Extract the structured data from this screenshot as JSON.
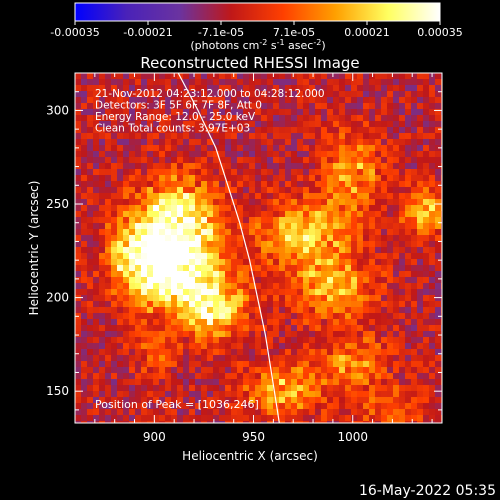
{
  "chart_data": {
    "type": "heatmap",
    "title": "Reconstructed RHESSI Image",
    "xlabel": "Heliocentric X (arcsec)",
    "ylabel": "Heliocentric Y (arcsec)",
    "xlim": [
      860,
      1045
    ],
    "ylim": [
      133,
      320
    ],
    "xticks": [
      900,
      950,
      1000
    ],
    "yticks": [
      150,
      200,
      250,
      300
    ],
    "colorbar": {
      "label_main": "(photons cm",
      "label_sup1": "-2",
      "label_mid": " s",
      "label_sup2": "-1",
      "label_end": " asec",
      "label_sup3": "-2",
      "label_close": ")",
      "range": [
        -0.00035,
        0.00035
      ],
      "ticks": [
        "-0.00035",
        "-0.00021",
        "-7.1e-05",
        "7.1e-05",
        "0.00021",
        "0.00035"
      ],
      "colors": [
        "#0000ff",
        "#4a22b8",
        "#6a33a0",
        "#c01818",
        "#ff4000",
        "#ffa000",
        "#ffff60",
        "#ffffff"
      ]
    },
    "info_lines": [
      "21-Nov-2012 04:23:12.000 to 04:28:12.000",
      "Detectors: 3F 5F 6F 7F 8F, Att 0",
      "Energy Range: 12.0 - 25.0 keV",
      "Clean    Total counts: 3.97E+03"
    ],
    "peak_text": "Position of Peak = [1036,246]",
    "peak": [
      1036,
      246
    ],
    "limb_curve": [
      [
        912,
        320
      ],
      [
        922,
        300
      ],
      [
        931,
        280
      ],
      [
        937,
        260
      ],
      [
        943,
        240
      ],
      [
        948,
        220
      ],
      [
        952,
        200
      ],
      [
        956,
        180
      ],
      [
        959,
        160
      ],
      [
        962,
        140
      ],
      [
        963,
        133
      ]
    ],
    "sources": [
      {
        "x": 912,
        "y": 240,
        "amp": 0.00036,
        "sx": 14,
        "sy": 16
      },
      {
        "x": 908,
        "y": 212,
        "amp": 0.00033,
        "sx": 16,
        "sy": 14
      },
      {
        "x": 930,
        "y": 195,
        "amp": 0.00028,
        "sx": 12,
        "sy": 12
      },
      {
        "x": 890,
        "y": 225,
        "amp": 0.0002,
        "sx": 10,
        "sy": 14
      },
      {
        "x": 975,
        "y": 235,
        "amp": 0.00026,
        "sx": 16,
        "sy": 12
      },
      {
        "x": 990,
        "y": 205,
        "amp": 0.00023,
        "sx": 14,
        "sy": 12
      },
      {
        "x": 1000,
        "y": 265,
        "amp": 0.0002,
        "sx": 10,
        "sy": 16
      },
      {
        "x": 1036,
        "y": 246,
        "amp": 0.00028,
        "sx": 7,
        "sy": 9
      },
      {
        "x": 965,
        "y": 150,
        "amp": 0.00022,
        "sx": 14,
        "sy": 10
      },
      {
        "x": 1000,
        "y": 165,
        "amp": 0.00017,
        "sx": 12,
        "sy": 10
      },
      {
        "x": 900,
        "y": 170,
        "amp": 0.00012,
        "sx": 8,
        "sy": 8
      },
      {
        "x": 1020,
        "y": 140,
        "amp": 0.00014,
        "sx": 12,
        "sy": 8
      }
    ]
  },
  "footer": {
    "date_stamp": "16-May-2022 05:35"
  }
}
